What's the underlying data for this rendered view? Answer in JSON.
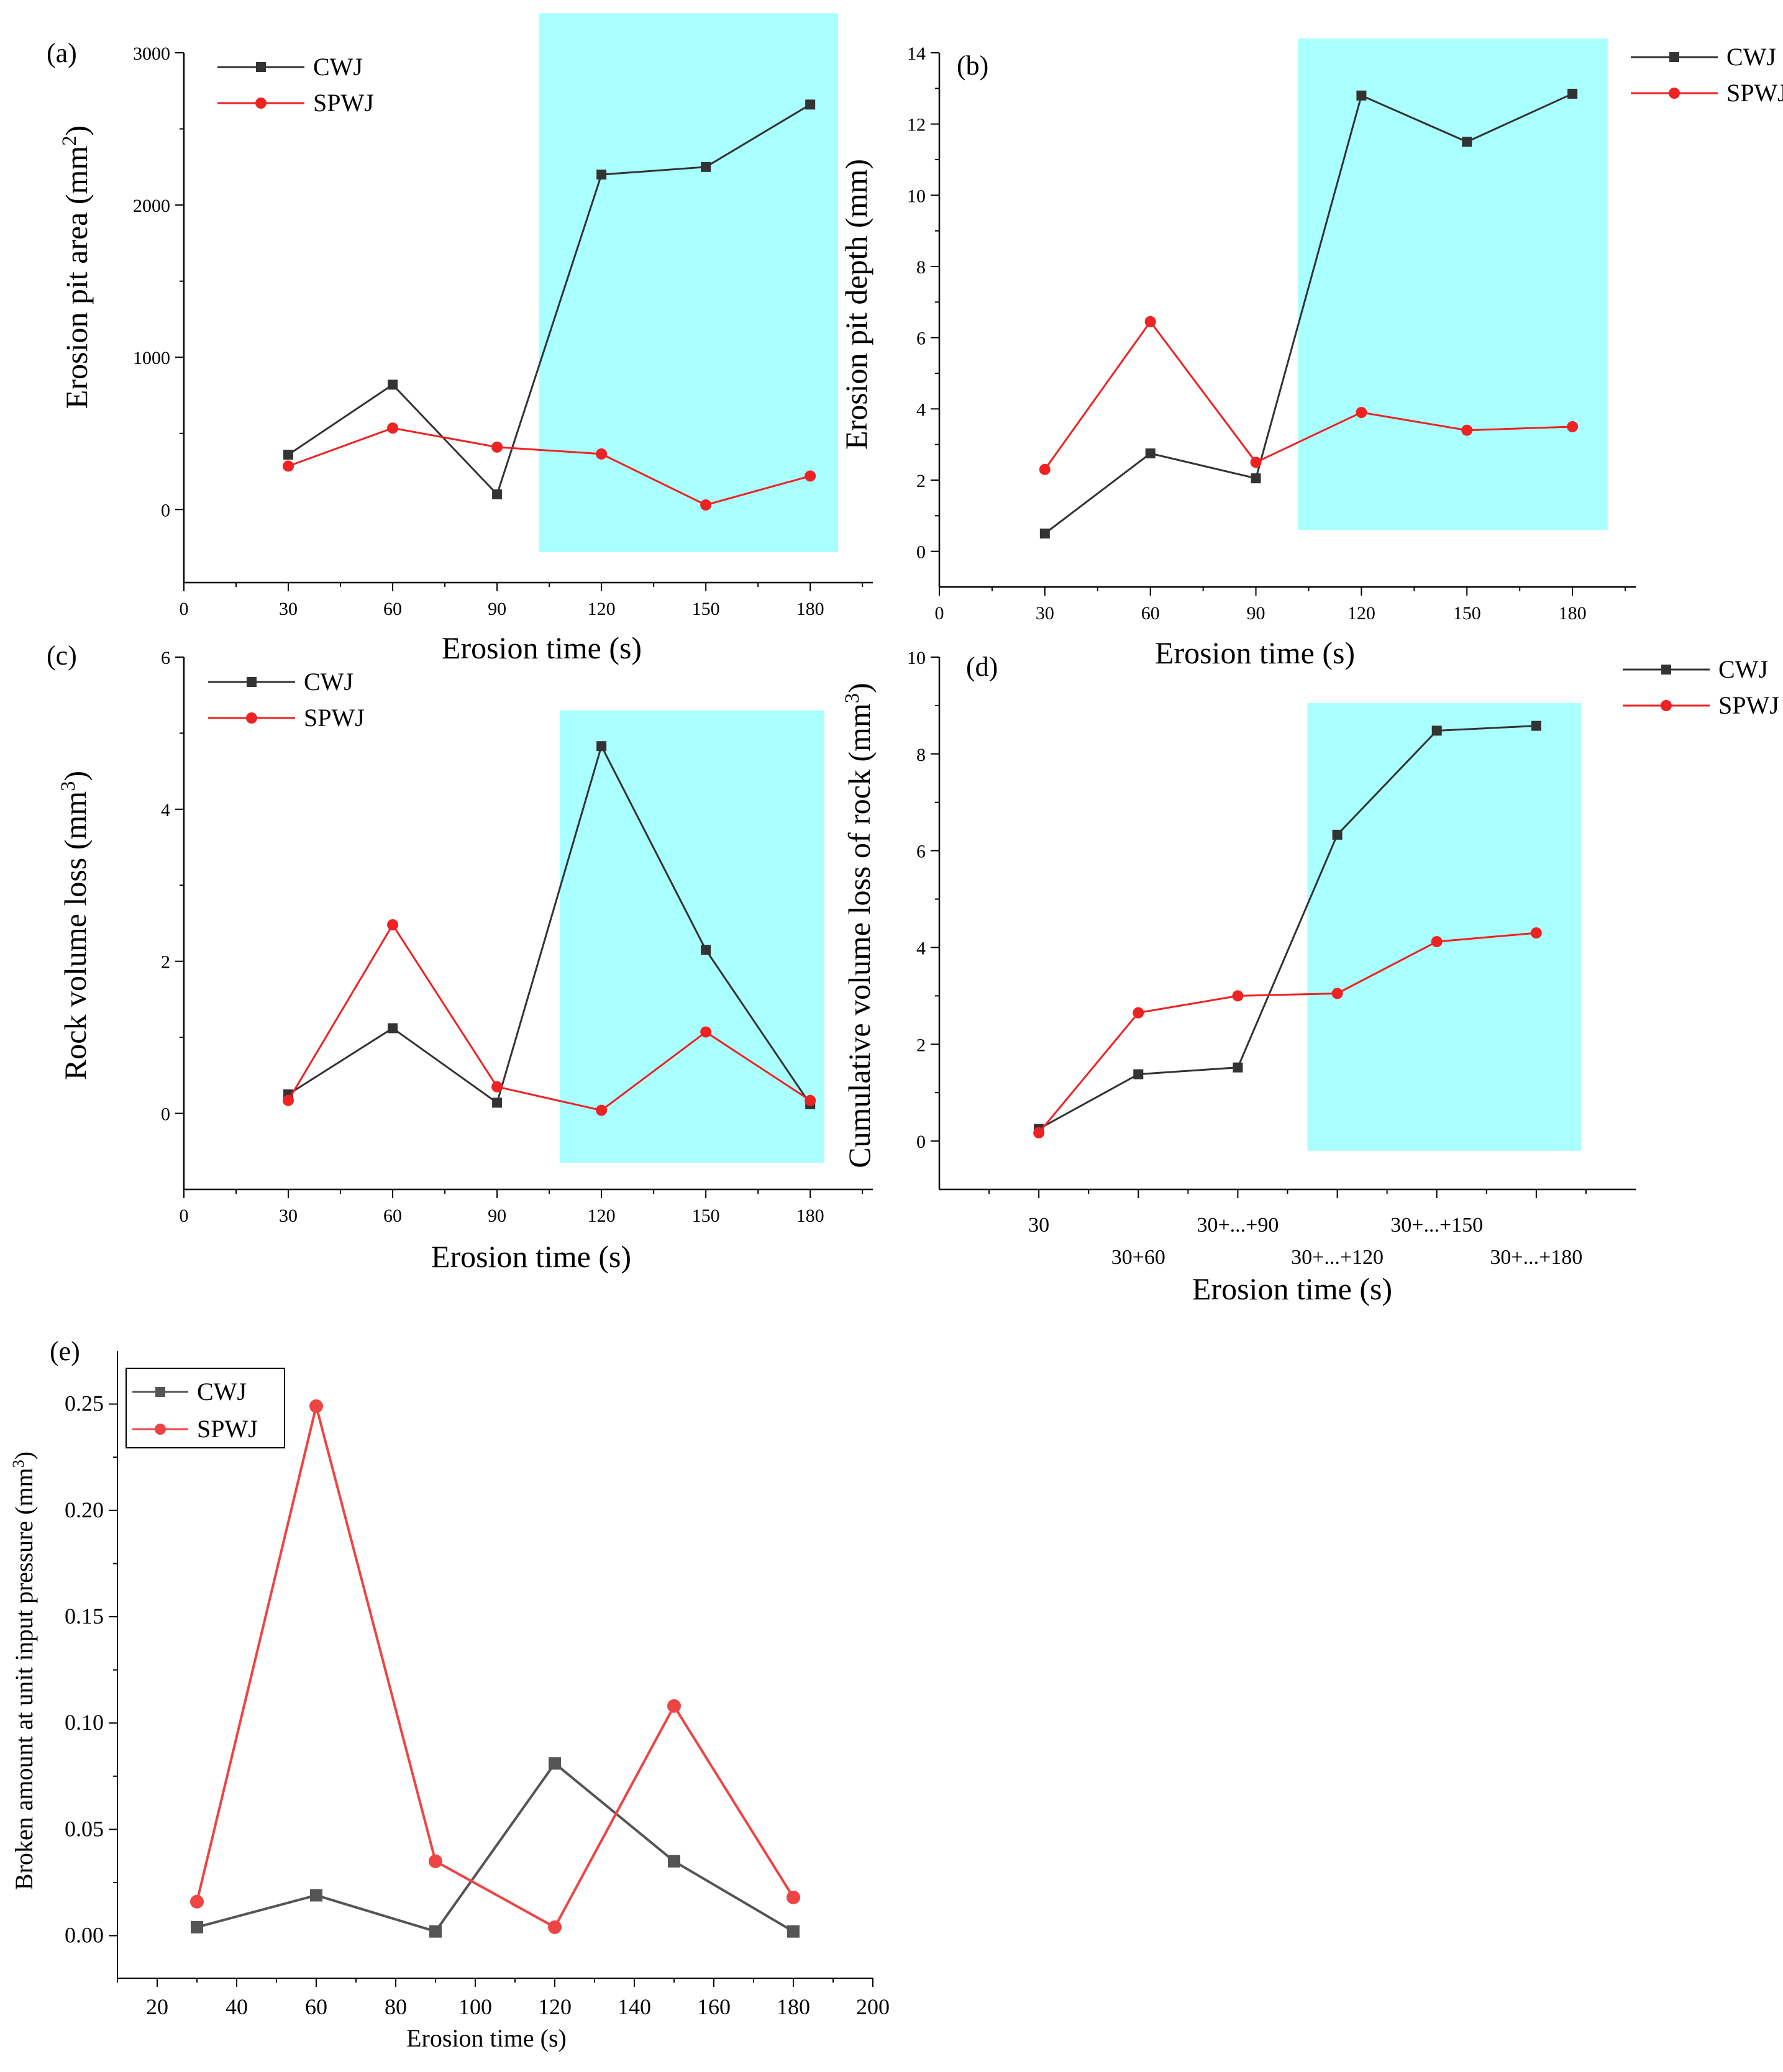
{
  "chart_data": [
    {
      "id": "a",
      "type": "line",
      "panel_label": "(a)",
      "title": "",
      "xlabel": "Erosion time (s)",
      "ylabel_main": "Erosion pit area (mm",
      "ylabel_sup": "2",
      "ylabel_end": ")",
      "xlim": [
        0,
        198
      ],
      "ylim": [
        -480,
        3000
      ],
      "xticks": [
        0,
        30,
        60,
        90,
        120,
        150,
        180
      ],
      "yticks": [
        0,
        1000,
        2000,
        3000
      ],
      "highlight_x": [
        102,
        188
      ],
      "highlight_y": [
        -280,
        3260
      ],
      "highlight_color": "#aaffff",
      "legend_position": "top-left",
      "series": [
        {
          "name": "CWJ",
          "color": "#333333",
          "marker": "square",
          "x": [
            30,
            60,
            90,
            120,
            150,
            180
          ],
          "y": [
            360,
            820,
            100,
            2200,
            2250,
            2660
          ]
        },
        {
          "name": "SPWJ",
          "color": "#ee2222",
          "marker": "circle",
          "x": [
            30,
            60,
            90,
            120,
            150,
            180
          ],
          "y": [
            285,
            535,
            410,
            365,
            30,
            220
          ]
        }
      ]
    },
    {
      "id": "b",
      "type": "line",
      "panel_label": "(b)",
      "title": "",
      "xlabel": "Erosion time (s)",
      "ylabel_main": "Erosion pit depth (mm)",
      "ylabel_sup": "",
      "ylabel_end": "",
      "xlim": [
        0,
        198
      ],
      "ylim": [
        -1,
        14
      ],
      "xticks": [
        0,
        30,
        60,
        90,
        120,
        150,
        180
      ],
      "yticks": [
        0,
        2,
        4,
        6,
        8,
        10,
        12,
        14
      ],
      "highlight_x": [
        102,
        190
      ],
      "highlight_y": [
        0.6,
        14.4
      ],
      "highlight_color": "#aaffff",
      "legend_position": "top-right",
      "series": [
        {
          "name": "CWJ",
          "color": "#333333",
          "marker": "square",
          "x": [
            30,
            60,
            90,
            120,
            150,
            180
          ],
          "y": [
            0.5,
            2.75,
            2.05,
            12.8,
            11.5,
            12.85
          ]
        },
        {
          "name": "SPWJ",
          "color": "#ee2222",
          "marker": "circle",
          "x": [
            30,
            60,
            90,
            120,
            150,
            180
          ],
          "y": [
            2.3,
            6.45,
            2.5,
            3.9,
            3.4,
            3.5
          ]
        }
      ]
    },
    {
      "id": "c",
      "type": "line",
      "panel_label": "(c)",
      "title": "",
      "xlabel": "Erosion time (s)",
      "ylabel_main": "Rock volume loss (mm",
      "ylabel_sup": "3",
      "ylabel_end": ")",
      "xlim": [
        0,
        198
      ],
      "ylim": [
        -1,
        6
      ],
      "xticks": [
        0,
        30,
        60,
        90,
        120,
        150,
        180
      ],
      "yticks": [
        0,
        2,
        4,
        6
      ],
      "highlight_x": [
        108,
        184
      ],
      "highlight_y": [
        -0.65,
        5.3
      ],
      "highlight_color": "#aaffff",
      "legend_position": "top-left",
      "series": [
        {
          "name": "CWJ",
          "color": "#333333",
          "marker": "square",
          "x": [
            30,
            60,
            90,
            120,
            150,
            180
          ],
          "y": [
            0.25,
            1.12,
            0.14,
            4.83,
            2.15,
            0.12
          ]
        },
        {
          "name": "SPWJ",
          "color": "#ee2222",
          "marker": "circle",
          "x": [
            30,
            60,
            90,
            120,
            150,
            180
          ],
          "y": [
            0.17,
            2.48,
            0.35,
            0.04,
            1.07,
            0.17
          ]
        }
      ]
    },
    {
      "id": "d",
      "type": "line",
      "panel_label": "(d)",
      "title": "",
      "xlabel": "Erosion time (s)",
      "ylabel_main": "Cumulative volume loss of rock (mm",
      "ylabel_sup": "3",
      "ylabel_end": ")",
      "categories": [
        "30",
        "30+60",
        "30+...+90",
        "30+...+120",
        "30+...+150",
        "30+...+180"
      ],
      "xlim": [
        0,
        7
      ],
      "ylim": [
        -1,
        10
      ],
      "yticks": [
        0,
        2,
        4,
        6,
        8,
        10
      ],
      "highlight_x": [
        3.7,
        6.45
      ],
      "highlight_y": [
        -0.2,
        9.05
      ],
      "highlight_color": "#aaffff",
      "legend_position": "top-right",
      "series": [
        {
          "name": "CWJ",
          "color": "#333333",
          "marker": "square",
          "x": [
            1,
            2,
            3,
            4,
            5,
            6
          ],
          "y": [
            0.25,
            1.38,
            1.52,
            6.33,
            8.48,
            8.58
          ]
        },
        {
          "name": "SPWJ",
          "color": "#ee2222",
          "marker": "circle",
          "x": [
            1,
            2,
            3,
            4,
            5,
            6
          ],
          "y": [
            0.17,
            2.65,
            3.0,
            3.05,
            4.12,
            4.3
          ]
        }
      ]
    },
    {
      "id": "e",
      "type": "line",
      "panel_label": "(e)",
      "title": "",
      "xlabel": "Erosion time (s)",
      "ylabel_main": "Broken amount at unit input pressure (mm",
      "ylabel_sup": "3",
      "ylabel_end": ")",
      "xlim": [
        10,
        200
      ],
      "ylim": [
        -0.02,
        0.275
      ],
      "xticks": [
        20,
        40,
        60,
        80,
        100,
        120,
        140,
        160,
        180,
        200
      ],
      "yticks": [
        0.0,
        0.05,
        0.1,
        0.15,
        0.2,
        0.25
      ],
      "legend_position": "top-left",
      "series": [
        {
          "name": "CWJ",
          "color": "#555555",
          "marker": "square",
          "x": [
            30,
            60,
            90,
            120,
            150,
            180
          ],
          "y": [
            0.004,
            0.019,
            0.002,
            0.081,
            0.035,
            0.002
          ]
        },
        {
          "name": "SPWJ",
          "color": "#ee4444",
          "marker": "circle",
          "x": [
            30,
            60,
            90,
            120,
            150,
            180
          ],
          "y": [
            0.016,
            0.249,
            0.035,
            0.004,
            0.108,
            0.018
          ]
        }
      ]
    }
  ]
}
